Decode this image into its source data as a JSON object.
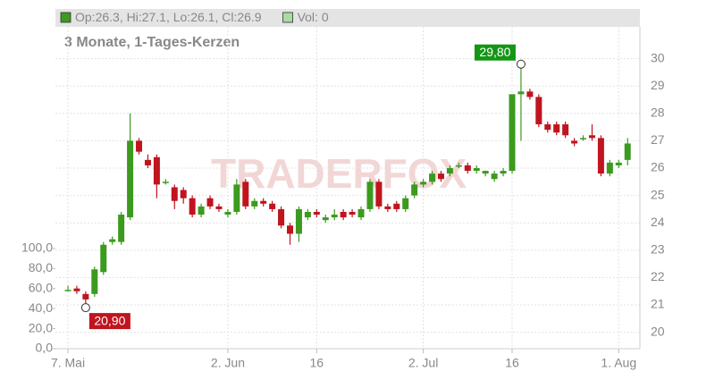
{
  "chart_data": {
    "type": "candlestick",
    "title": "3 Monate, 1-Tages-Kerzen",
    "watermark": "TRADERFOX",
    "legend": [
      {
        "label": "Op:26.3, Hi:27.1, Lo:26.1, Cl:26.9",
        "color": "#3c9a1e"
      },
      {
        "label": "Vol: 0",
        "color": "#a8dca0"
      }
    ],
    "categories": [
      "7. Mai",
      null,
      null,
      null,
      null,
      null,
      null,
      null,
      null,
      null,
      null,
      null,
      null,
      null,
      null,
      null,
      null,
      null,
      "2. Jun",
      null,
      null,
      null,
      null,
      null,
      null,
      null,
      null,
      null,
      "16",
      null,
      null,
      null,
      null,
      null,
      null,
      null,
      null,
      null,
      null,
      null,
      "2. Jul",
      null,
      null,
      null,
      null,
      null,
      null,
      null,
      null,
      null,
      "16",
      null,
      null,
      null,
      null,
      null,
      null,
      null,
      null,
      null,
      null,
      null,
      "1. Aug",
      null
    ],
    "open": [
      21.55,
      21.6,
      21.4,
      21.4,
      22.2,
      23.3,
      23.3,
      24.2,
      27.0,
      26.3,
      26.4,
      25.5,
      25.3,
      25.2,
      24.9,
      24.3,
      24.9,
      24.6,
      24.3,
      24.4,
      25.5,
      24.6,
      24.8,
      24.7,
      24.5,
      23.9,
      23.6,
      24.2,
      24.4,
      24.1,
      24.2,
      24.4,
      24.4,
      24.2,
      24.5,
      25.5,
      24.6,
      24.7,
      24.5,
      25.0,
      25.4,
      25.5,
      25.8,
      25.8,
      26.1,
      26.1,
      25.9,
      25.8,
      25.6,
      25.8,
      25.9,
      28.7,
      28.8,
      28.6,
      27.6,
      27.6,
      27.6,
      27.0,
      27.1,
      27.2,
      27.1,
      25.8,
      26.1,
      26.3
    ],
    "high": [
      21.7,
      21.7,
      21.5,
      22.4,
      23.3,
      23.5,
      24.4,
      28.0,
      27.1,
      26.5,
      26.5,
      25.6,
      25.4,
      25.3,
      25.0,
      24.7,
      25.0,
      24.7,
      24.5,
      25.6,
      25.6,
      24.9,
      24.9,
      24.8,
      24.6,
      24.0,
      24.6,
      24.5,
      24.5,
      24.3,
      24.5,
      24.5,
      24.5,
      24.6,
      25.6,
      25.6,
      24.7,
      24.8,
      25.0,
      25.5,
      25.6,
      25.9,
      25.9,
      26.1,
      26.2,
      26.2,
      26.1,
      25.9,
      25.9,
      26.0,
      28.7,
      29.8,
      28.9,
      28.7,
      27.7,
      27.7,
      27.7,
      27.1,
      27.2,
      27.6,
      27.2,
      26.3,
      26.3,
      27.1
    ],
    "low": [
      21.5,
      21.4,
      20.9,
      21.3,
      22.1,
      23.2,
      23.2,
      24.1,
      26.5,
      26.0,
      24.9,
      25.4,
      24.5,
      24.7,
      24.2,
      24.2,
      24.5,
      24.4,
      24.2,
      24.3,
      24.5,
      24.5,
      24.6,
      24.4,
      23.8,
      23.2,
      23.3,
      24.1,
      24.2,
      24.0,
      24.1,
      24.1,
      24.2,
      24.1,
      24.4,
      24.5,
      24.4,
      24.4,
      24.4,
      24.9,
      25.3,
      25.4,
      25.5,
      25.7,
      26.0,
      25.8,
      25.8,
      25.7,
      25.5,
      25.7,
      25.8,
      27.0,
      28.5,
      27.5,
      27.3,
      27.2,
      27.1,
      26.8,
      27.0,
      27.0,
      25.7,
      25.7,
      26.0,
      26.1
    ],
    "close": [
      21.55,
      21.5,
      21.2,
      22.3,
      23.2,
      23.4,
      24.3,
      27.0,
      26.6,
      26.1,
      25.4,
      25.5,
      24.8,
      24.9,
      24.3,
      24.6,
      24.6,
      24.5,
      24.4,
      25.4,
      24.6,
      24.8,
      24.7,
      24.5,
      23.9,
      23.6,
      24.5,
      24.4,
      24.3,
      24.2,
      24.3,
      24.2,
      24.3,
      24.5,
      25.5,
      24.6,
      24.5,
      24.5,
      24.9,
      25.4,
      25.5,
      25.8,
      25.6,
      26.0,
      26.1,
      25.9,
      26.0,
      25.9,
      25.8,
      25.9,
      28.7,
      28.8,
      28.6,
      27.6,
      27.4,
      27.3,
      27.2,
      26.9,
      27.1,
      27.1,
      25.8,
      26.2,
      26.2,
      26.9
    ],
    "up_color": "#3c9a1e",
    "down_color": "#c0141e",
    "annotations": [
      {
        "index": 51,
        "value": 29.8,
        "label": "29,80",
        "color": "#149614"
      },
      {
        "index": 2,
        "value": 20.9,
        "label": "20,90",
        "color": "#c0141e"
      }
    ],
    "ylim": [
      19.4,
      31.0
    ],
    "yticks": [
      20,
      21,
      22,
      23,
      24,
      25,
      26,
      27,
      28,
      29,
      30
    ],
    "y2lim": [
      0,
      317
    ],
    "y2ticks": [
      {
        "value": 0,
        "label": "0,0"
      },
      {
        "value": 20,
        "label": "20,0"
      },
      {
        "value": 40,
        "label": "40,0"
      },
      {
        "value": 60,
        "label": "60,0"
      },
      {
        "value": 80,
        "label": "80,0"
      },
      {
        "value": 100,
        "label": "100,0"
      }
    ],
    "grid": true
  }
}
